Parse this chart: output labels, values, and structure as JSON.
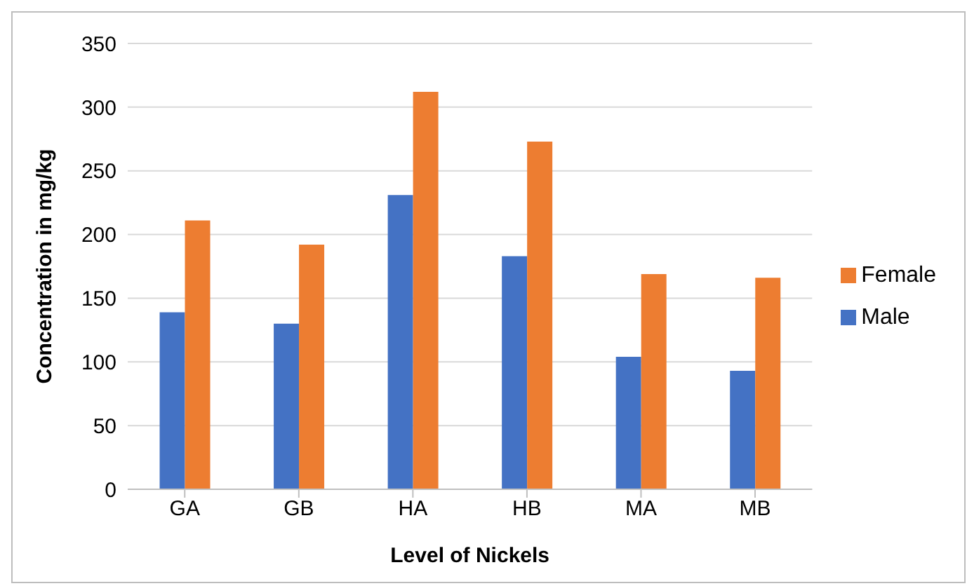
{
  "chart_data": {
    "type": "bar",
    "xlabel": "Level of Nickels",
    "ylabel": "Concentration in mg/kg",
    "categories": [
      "GA",
      "GB",
      "HA",
      "HB",
      "MA",
      "MB"
    ],
    "series": [
      {
        "name": "Male",
        "color": "#4472c4",
        "values": [
          139,
          130,
          231,
          183,
          104,
          93
        ]
      },
      {
        "name": "Female",
        "color": "#ed7d31",
        "values": [
          211,
          192,
          312,
          273,
          169,
          166
        ]
      }
    ],
    "ylim": [
      0,
      350
    ],
    "yticks": [
      0,
      50,
      100,
      150,
      200,
      250,
      300,
      350
    ],
    "grid": "y",
    "legend": "right"
  }
}
